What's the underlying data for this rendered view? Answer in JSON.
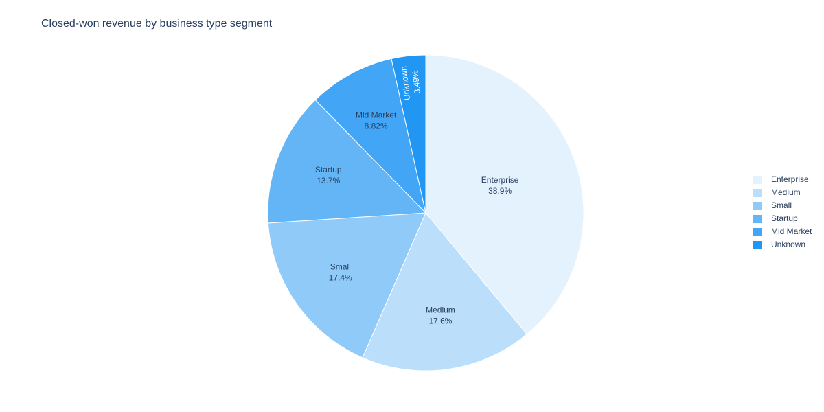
{
  "chart_data": {
    "type": "pie",
    "title": "Closed-won revenue by business type segment",
    "categories": [
      "Enterprise",
      "Medium",
      "Small",
      "Startup",
      "Mid Market",
      "Unknown"
    ],
    "values": [
      38.9,
      17.6,
      17.4,
      13.7,
      8.82,
      3.49
    ],
    "value_labels": [
      "38.9%",
      "17.6%",
      "17.4%",
      "13.7%",
      "8.82%",
      "3.49%"
    ],
    "colors": [
      "#e3f2fd",
      "#bbdefb",
      "#90caf9",
      "#64b5f6",
      "#42a5f5",
      "#2196f3"
    ],
    "legend": "right"
  }
}
